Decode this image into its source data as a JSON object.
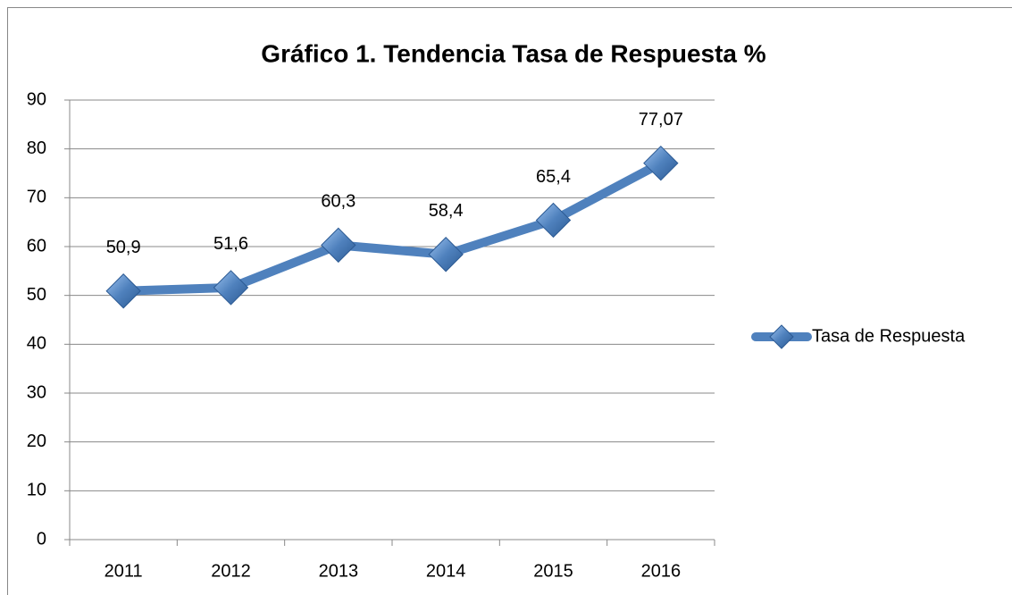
{
  "chart_data": {
    "type": "line",
    "title": "Gráfico 1. Tendencia Tasa de Respuesta %",
    "categories": [
      "2011",
      "2012",
      "2013",
      "2014",
      "2015",
      "2016"
    ],
    "series": [
      {
        "name": "Tasa de Respuesta",
        "color": "#4f81bd",
        "values": [
          50.9,
          51.6,
          60.3,
          58.4,
          65.4,
          77.07
        ],
        "value_labels": [
          "50,9",
          "51,6",
          "60,3",
          "58,4",
          "65,4",
          "77,07"
        ]
      }
    ],
    "ylim": [
      0,
      90
    ],
    "yticks": [
      0,
      10,
      20,
      30,
      40,
      50,
      60,
      70,
      80,
      90
    ],
    "grid": true,
    "legend": "right"
  }
}
